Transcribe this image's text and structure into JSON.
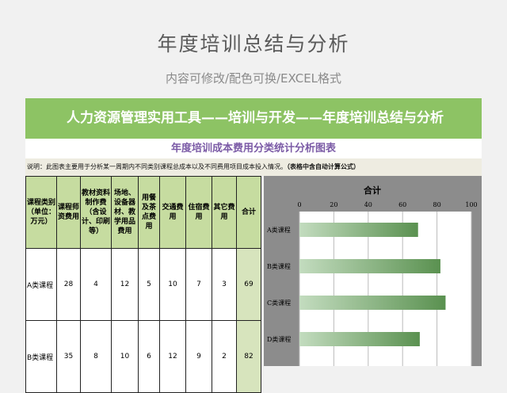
{
  "title": "年度培训总结与分析",
  "subtitle": "内容可修改/配色可换/EXCEL格式",
  "banner": "人力资源管理实用工具——培训与开发——年度培训总结与分析",
  "sheet_title": "年度培训成本费用分类统计分析图表",
  "description": "说明：此图表主要用于分析某一周期内不同类别课程总成本以及不同费用项目成本投入情况。",
  "description_note": "（表格中含自动计算公式）",
  "table": {
    "headers": [
      "课程类别（单位：万元）",
      "课程师资费用",
      "教材资料制作费（含设计、印刷等）",
      "场地、设备器材、教学用品费用",
      "用餐及茶点费用",
      "交通费用",
      "住宿费用",
      "其它费用",
      "合计"
    ],
    "rows": [
      [
        "A类课程",
        "28",
        "4",
        "12",
        "5",
        "10",
        "7",
        "3",
        "69"
      ],
      [
        "B类课程",
        "35",
        "8",
        "10",
        "6",
        "12",
        "9",
        "2",
        "82"
      ]
    ]
  },
  "chart_data": {
    "type": "bar",
    "orientation": "horizontal",
    "title": "合计",
    "categories": [
      "A类课程",
      "B类课程",
      "C类课程",
      "D类课程"
    ],
    "values": [
      69,
      82,
      85,
      70
    ],
    "xlim": [
      0,
      100
    ],
    "xticks": [
      0,
      20,
      40,
      60,
      80,
      100
    ],
    "grid": true,
    "bar_color_start": "#c3dcbf",
    "bar_color_end": "#5a9150"
  }
}
